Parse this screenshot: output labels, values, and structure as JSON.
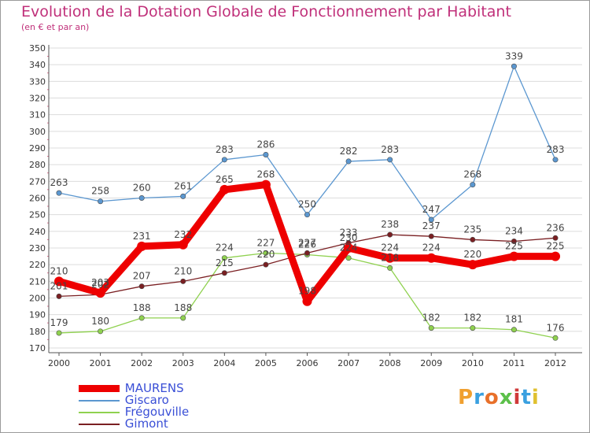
{
  "title": "Evolution de la Dotation Globale de Fonctionnement par Habitant",
  "subtitle": "(en € et par an)",
  "brand": "Proxiti",
  "chart_data": {
    "type": "line",
    "x": [
      2000,
      2001,
      2002,
      2003,
      2004,
      2005,
      2006,
      2007,
      2008,
      2009,
      2010,
      2011,
      2012
    ],
    "ylim": [
      170,
      350
    ],
    "ytick_step": 10,
    "grid": "horizontal",
    "legend": "bottom-left",
    "series": [
      {
        "name": "MAURENS",
        "color": "#ee0000",
        "values": [
          210,
          203,
          231,
          232,
          265,
          268,
          198,
          230,
          224,
          224,
          220,
          225,
          225
        ]
      },
      {
        "name": "Giscaro",
        "color": "#5b97d0",
        "values": [
          263,
          258,
          260,
          261,
          283,
          286,
          250,
          282,
          283,
          247,
          268,
          339,
          283
        ]
      },
      {
        "name": "Frégouville",
        "color": "#8fd14f",
        "values": [
          179,
          180,
          188,
          188,
          224,
          227,
          226,
          224,
          218,
          182,
          182,
          181,
          176
        ]
      },
      {
        "name": "Gimont",
        "color": "#7a1f22",
        "values": [
          201,
          202,
          207,
          210,
          215,
          220,
          227,
          233,
          238,
          237,
          235,
          234,
          236
        ]
      }
    ]
  }
}
